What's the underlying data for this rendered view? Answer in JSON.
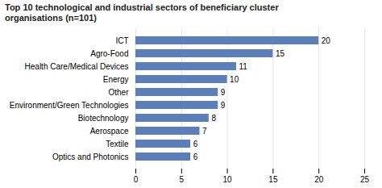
{
  "chart_data": {
    "type": "bar",
    "title": "Top 10 technological and industrial sectors of beneficiary cluster\norganisations  (n=101)",
    "orientation": "horizontal",
    "categories": [
      "ICT",
      "Agro-Food",
      "Health Care/Medical Devices",
      "Energy",
      "Other",
      "Environment/Green Technologies",
      "Biotechnology",
      "Aerospace",
      "Textile",
      "Optics and Photonics"
    ],
    "values": [
      20,
      15,
      11,
      10,
      9,
      9,
      8,
      7,
      6,
      6
    ],
    "color": "#5b7fba",
    "xlim": [
      0,
      25
    ],
    "xticks": [
      0,
      5,
      10,
      15,
      20,
      25
    ],
    "grid": true,
    "data_labels": true
  }
}
